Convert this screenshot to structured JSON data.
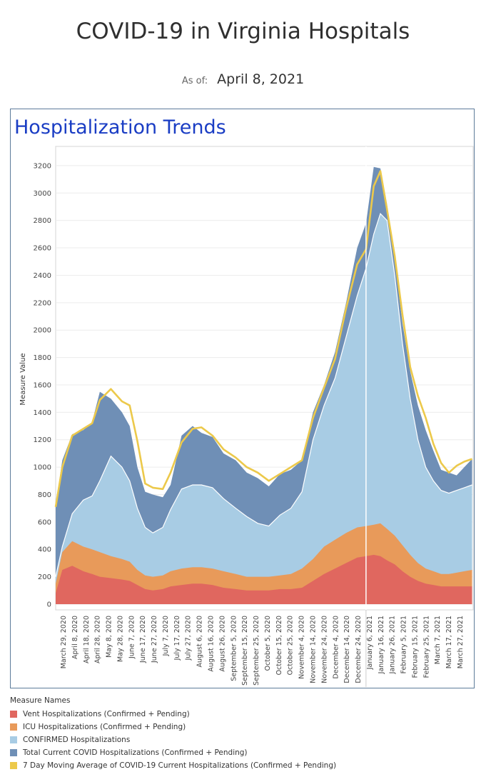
{
  "header": {
    "title": "COVID-19 in Virginia Hospitals",
    "as_of_label": "As of:",
    "as_of_date": "April 8, 2021"
  },
  "panel": {
    "title": "Hospitalization Trends"
  },
  "legend": {
    "title": "Measure Names",
    "items": [
      {
        "label": "Vent Hospitalizations (Confirmed + Pending)",
        "color": "#e0675f"
      },
      {
        "label": "ICU Hospitalizations (Confirmed + Pending)",
        "color": "#e89a5a"
      },
      {
        "label": "CONFIRMED Hospitalizations",
        "color": "#a8cce4"
      },
      {
        "label": "Total Current COVID Hospitalizations (Confirmed + Pending)",
        "color": "#6f8fb6"
      },
      {
        "label": "7 Day Moving Average of COVID-19 Current Hospitalizations (Confirmed + Pending)",
        "color": "#ecc94b"
      }
    ]
  },
  "chart_data": {
    "type": "area",
    "ylabel": "Measure Value",
    "ylim": [
      0,
      3300
    ],
    "yticks": [
      0,
      200,
      400,
      600,
      800,
      1000,
      1200,
      1400,
      1600,
      1800,
      2000,
      2200,
      2400,
      2600,
      2800,
      3000,
      3200
    ],
    "xticks": [
      "March 29, 2020",
      "April 8, 2020",
      "April 18, 2020",
      "April 28, 2020",
      "May 8, 2020",
      "May 28, 2020",
      "June 7, 2020",
      "June 17, 2020",
      "June 27, 2020",
      "July 7, 2020",
      "July 17, 2020",
      "July 27, 2020",
      "August 6, 2020",
      "August 16, 2020",
      "August 26, 2020",
      "September 5, 2020",
      "September 15, 2020",
      "September 25, 2020",
      "October 5, 2020",
      "October 15, 2020",
      "October 25, 2020",
      "November 4, 2020",
      "November 14, 2020",
      "November 24, 2020",
      "December 4, 2020",
      "December 14, 2020",
      "December 24, 2020",
      "January 6, 2021",
      "January 16, 2021",
      "January 26, 2021",
      "February 5, 2021",
      "February 15, 2021",
      "February 25, 2021",
      "March 7, 2021",
      "March 17, 2021",
      "March 27, 2021"
    ],
    "legend_position": "bottom",
    "grid": true,
    "series": [
      {
        "name": "Total Current COVID Hospitalizations (Confirmed + Pending)",
        "x": [
          "2020-03-26",
          "2020-04-01",
          "2020-04-10",
          "2020-04-20",
          "2020-04-28",
          "2020-05-05",
          "2020-05-15",
          "2020-05-25",
          "2020-06-01",
          "2020-06-08",
          "2020-06-15",
          "2020-06-22",
          "2020-07-01",
          "2020-07-08",
          "2020-07-18",
          "2020-07-28",
          "2020-08-05",
          "2020-08-15",
          "2020-08-25",
          "2020-09-05",
          "2020-09-15",
          "2020-09-25",
          "2020-10-05",
          "2020-10-15",
          "2020-10-25",
          "2020-11-04",
          "2020-11-14",
          "2020-11-24",
          "2020-12-04",
          "2020-12-14",
          "2020-12-24",
          "2021-01-01",
          "2021-01-08",
          "2021-01-14",
          "2021-01-20",
          "2021-01-27",
          "2021-02-03",
          "2021-02-10",
          "2021-02-17",
          "2021-02-24",
          "2021-03-03",
          "2021-03-10",
          "2021-03-17",
          "2021-03-24",
          "2021-03-31",
          "2021-04-07"
        ],
        "values": [
          720,
          1050,
          1240,
          1270,
          1330,
          1550,
          1500,
          1400,
          1300,
          1000,
          820,
          800,
          780,
          870,
          1230,
          1300,
          1250,
          1220,
          1100,
          1050,
          960,
          920,
          860,
          950,
          980,
          1050,
          1400,
          1600,
          1840,
          2200,
          2600,
          2780,
          3190,
          3180,
          2920,
          2520,
          2050,
          1700,
          1450,
          1270,
          1120,
          980,
          960,
          940,
          1000,
          1060
        ]
      },
      {
        "name": "7 Day Moving Average of COVID-19 Current Hospitalizations (Confirmed + Pending)",
        "x": [
          "2020-03-26",
          "2020-04-01",
          "2020-04-10",
          "2020-04-20",
          "2020-04-28",
          "2020-05-05",
          "2020-05-15",
          "2020-05-25",
          "2020-06-01",
          "2020-06-08",
          "2020-06-15",
          "2020-06-22",
          "2020-07-01",
          "2020-07-08",
          "2020-07-18",
          "2020-07-28",
          "2020-08-05",
          "2020-08-15",
          "2020-08-25",
          "2020-09-05",
          "2020-09-15",
          "2020-09-25",
          "2020-10-05",
          "2020-10-15",
          "2020-10-25",
          "2020-11-04",
          "2020-11-14",
          "2020-11-24",
          "2020-12-04",
          "2020-12-14",
          "2020-12-24",
          "2021-01-01",
          "2021-01-08",
          "2021-01-14",
          "2021-01-20",
          "2021-01-27",
          "2021-02-03",
          "2021-02-10",
          "2021-02-17",
          "2021-02-24",
          "2021-03-03",
          "2021-03-10",
          "2021-03-17",
          "2021-03-24",
          "2021-03-31",
          "2021-04-07"
        ],
        "values": [
          710,
          1000,
          1230,
          1280,
          1320,
          1490,
          1570,
          1480,
          1450,
          1190,
          880,
          850,
          840,
          960,
          1180,
          1280,
          1290,
          1230,
          1130,
          1070,
          1000,
          960,
          900,
          950,
          1000,
          1050,
          1360,
          1580,
          1790,
          2160,
          2480,
          2590,
          3050,
          3160,
          2880,
          2540,
          2110,
          1730,
          1520,
          1360,
          1170,
          1030,
          960,
          1010,
          1040,
          1060
        ]
      },
      {
        "name": "CONFIRMED Hospitalizations",
        "x": [
          "2020-03-26",
          "2020-04-01",
          "2020-04-10",
          "2020-04-20",
          "2020-04-28",
          "2020-05-05",
          "2020-05-15",
          "2020-05-25",
          "2020-06-01",
          "2020-06-08",
          "2020-06-15",
          "2020-06-22",
          "2020-07-01",
          "2020-07-08",
          "2020-07-18",
          "2020-07-28",
          "2020-08-05",
          "2020-08-15",
          "2020-08-25",
          "2020-09-05",
          "2020-09-15",
          "2020-09-25",
          "2020-10-05",
          "2020-10-15",
          "2020-10-25",
          "2020-11-04",
          "2020-11-14",
          "2020-11-24",
          "2020-12-04",
          "2020-12-14",
          "2020-12-24",
          "2021-01-01",
          "2021-01-08",
          "2021-01-14",
          "2021-01-20",
          "2021-01-27",
          "2021-02-03",
          "2021-02-10",
          "2021-02-17",
          "2021-02-24",
          "2021-03-03",
          "2021-03-10",
          "2021-03-17",
          "2021-03-24",
          "2021-03-31",
          "2021-04-07"
        ],
        "values": [
          200,
          420,
          660,
          760,
          790,
          900,
          1080,
          1000,
          900,
          700,
          560,
          520,
          560,
          690,
          840,
          870,
          870,
          850,
          770,
          700,
          640,
          590,
          570,
          650,
          700,
          820,
          1200,
          1450,
          1650,
          1950,
          2250,
          2450,
          2700,
          2850,
          2800,
          2400,
          1900,
          1500,
          1200,
          1000,
          900,
          830,
          810,
          830,
          850,
          870
        ]
      },
      {
        "name": "ICU Hospitalizations (Confirmed + Pending)",
        "x": [
          "2020-03-26",
          "2020-04-01",
          "2020-04-10",
          "2020-04-20",
          "2020-04-28",
          "2020-05-05",
          "2020-05-15",
          "2020-05-25",
          "2020-06-01",
          "2020-06-08",
          "2020-06-15",
          "2020-06-22",
          "2020-07-01",
          "2020-07-08",
          "2020-07-18",
          "2020-07-28",
          "2020-08-05",
          "2020-08-15",
          "2020-08-25",
          "2020-09-05",
          "2020-09-15",
          "2020-09-25",
          "2020-10-05",
          "2020-10-15",
          "2020-10-25",
          "2020-11-04",
          "2020-11-14",
          "2020-11-24",
          "2020-12-04",
          "2020-12-14",
          "2020-12-24",
          "2021-01-01",
          "2021-01-08",
          "2021-01-14",
          "2021-01-20",
          "2021-01-27",
          "2021-02-03",
          "2021-02-10",
          "2021-02-17",
          "2021-02-24",
          "2021-03-03",
          "2021-03-10",
          "2021-03-17",
          "2021-03-24",
          "2021-03-31",
          "2021-04-07"
        ],
        "values": [
          150,
          380,
          460,
          420,
          400,
          380,
          350,
          330,
          310,
          250,
          210,
          200,
          210,
          240,
          260,
          270,
          270,
          260,
          240,
          220,
          200,
          200,
          200,
          210,
          220,
          260,
          330,
          420,
          470,
          520,
          560,
          570,
          580,
          590,
          550,
          500,
          430,
          360,
          300,
          260,
          240,
          220,
          220,
          230,
          240,
          250
        ]
      },
      {
        "name": "Vent Hospitalizations (Confirmed + Pending)",
        "x": [
          "2020-03-26",
          "2020-04-01",
          "2020-04-10",
          "2020-04-20",
          "2020-04-28",
          "2020-05-05",
          "2020-05-15",
          "2020-05-25",
          "2020-06-01",
          "2020-06-08",
          "2020-06-15",
          "2020-06-22",
          "2020-07-01",
          "2020-07-08",
          "2020-07-18",
          "2020-07-28",
          "2020-08-05",
          "2020-08-15",
          "2020-08-25",
          "2020-09-05",
          "2020-09-15",
          "2020-09-25",
          "2020-10-05",
          "2020-10-15",
          "2020-10-25",
          "2020-11-04",
          "2020-11-14",
          "2020-11-24",
          "2020-12-04",
          "2020-12-14",
          "2020-12-24",
          "2021-01-01",
          "2021-01-08",
          "2021-01-14",
          "2021-01-20",
          "2021-01-27",
          "2021-02-03",
          "2021-02-10",
          "2021-02-17",
          "2021-02-24",
          "2021-03-03",
          "2021-03-10",
          "2021-03-17",
          "2021-03-24",
          "2021-03-31",
          "2021-04-07"
        ],
        "values": [
          80,
          250,
          280,
          240,
          220,
          200,
          190,
          180,
          170,
          140,
          110,
          100,
          110,
          130,
          140,
          150,
          150,
          140,
          120,
          110,
          100,
          100,
          100,
          110,
          110,
          120,
          170,
          220,
          260,
          300,
          340,
          350,
          360,
          350,
          320,
          290,
          240,
          200,
          170,
          150,
          140,
          130,
          130,
          130,
          130,
          130
        ]
      }
    ]
  }
}
